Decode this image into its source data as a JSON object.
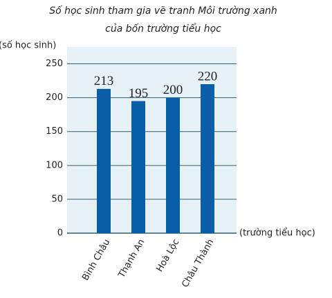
{
  "chart_data": {
    "type": "bar",
    "title": "Số học sinh tham gia vẽ tranh Môi trường xanh",
    "subtitle": "của bốn trường tiểu học",
    "y_label": "(số học sinh)",
    "x_label": "(trường tiểu học)",
    "categories": [
      "Bình Châu",
      "Thạnh An",
      "Hoà Lộc",
      "Châu Thành"
    ],
    "values": [
      213,
      195,
      200,
      220
    ],
    "color": "#0a5ea8",
    "ylim": [
      0,
      275
    ],
    "yticks": [
      0,
      50,
      100,
      150,
      200,
      250
    ],
    "grid": true
  }
}
